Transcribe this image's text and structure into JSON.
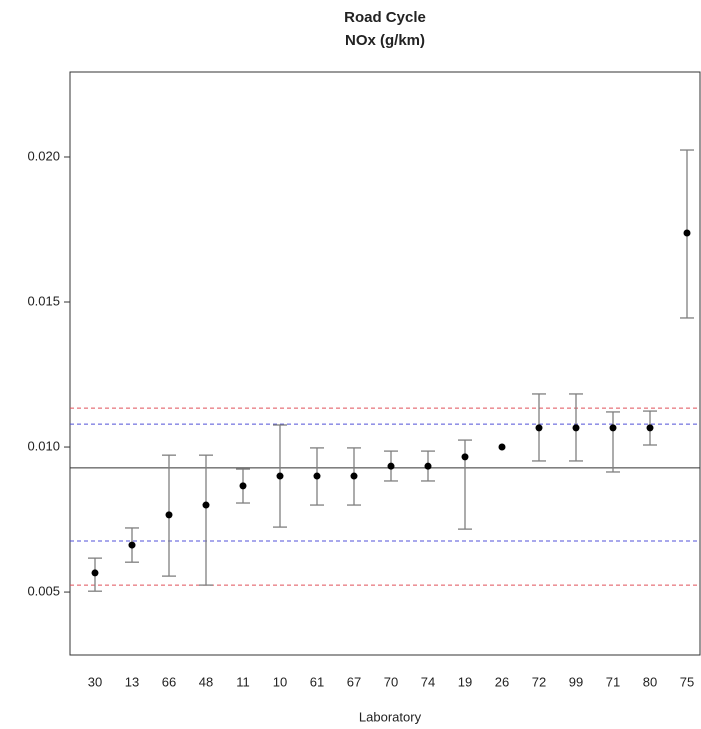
{
  "chart_data": {
    "type": "errorbar",
    "title": "Road Cycle",
    "subtitle": "NOx (g/km)",
    "x_label": "Laboratory",
    "categories": [
      "30",
      "13",
      "66",
      "48",
      "11",
      "10",
      "61",
      "67",
      "70",
      "74",
      "19",
      "26",
      "72",
      "99",
      "71",
      "80",
      "75"
    ],
    "values": [
      0.00566,
      0.00662,
      0.00766,
      0.008,
      0.00866,
      0.009,
      0.009,
      0.009,
      0.00934,
      0.00934,
      0.00966,
      0.01,
      0.01066,
      0.01066,
      0.01066,
      0.01066,
      0.01738
    ],
    "lower": [
      0.00503,
      0.00603,
      0.00555,
      0.00524,
      0.00807,
      0.00724,
      0.008,
      0.008,
      0.00883,
      0.00883,
      0.00717,
      null,
      0.00952,
      0.00952,
      0.00914,
      0.01007,
      0.01445
    ],
    "upper": [
      0.00617,
      0.00721,
      0.00972,
      0.00972,
      0.00924,
      0.01076,
      0.00997,
      0.00997,
      0.00986,
      0.00986,
      0.01024,
      null,
      0.01183,
      0.01183,
      0.01121,
      0.01124,
      0.02024
    ],
    "color": "#000000",
    "error_color": "#7f7f7f",
    "reference_lines": [
      {
        "value": 0.01134,
        "color": "#e0505a",
        "dashed": true
      },
      {
        "value": 0.01079,
        "color": "#5050d8",
        "dashed": true
      },
      {
        "value": 0.00928,
        "color": "#333333",
        "dashed": false
      },
      {
        "value": 0.00676,
        "color": "#5050d8",
        "dashed": true
      },
      {
        "value": 0.00524,
        "color": "#e0505a",
        "dashed": true
      }
    ],
    "ylim": [
      0.00283,
      0.02293
    ],
    "yticks": [
      {
        "value": 0.005,
        "label": "0.005"
      },
      {
        "value": 0.01,
        "label": "0.010"
      },
      {
        "value": 0.015,
        "label": "0.015"
      },
      {
        "value": 0.02,
        "label": "0.020"
      }
    ]
  }
}
